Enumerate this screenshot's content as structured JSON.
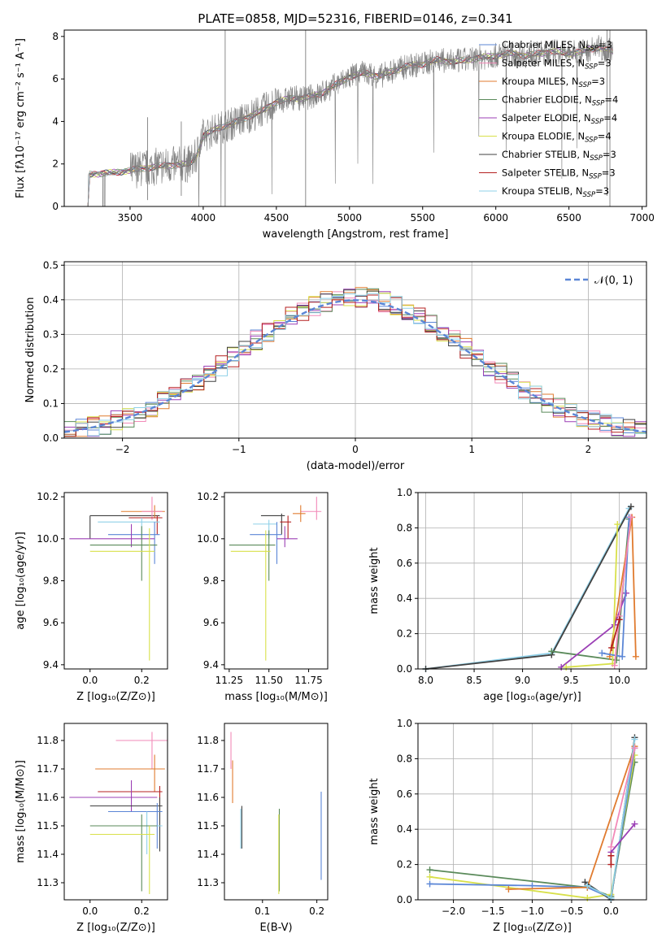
{
  "chart_data": [
    {
      "id": "spectrum",
      "type": "line",
      "title": "PLATE=0858, MJD=52316, FIBERID=0146, z=0.341",
      "xlabel": "wavelength [Angstrom, rest frame]",
      "ylabel": "Flux [fλ10⁻¹⁷ erg cm⁻² s⁻¹ A⁻¹]",
      "xlim": [
        3050,
        7030
      ],
      "ylim": [
        0,
        8.3
      ],
      "xticks": [
        3500,
        4000,
        4500,
        5000,
        5500,
        6000,
        6500,
        7000
      ],
      "yticks": [
        0,
        2,
        4,
        6,
        8
      ],
      "grid": false,
      "legend_position": "top-right",
      "series": [
        {
          "name": "Chabrier MILES, N",
          "sub": "SSP",
          "suffix": "=3",
          "color": "#5b86d6"
        },
        {
          "name": "Salpeter MILES, N",
          "sub": "SSP",
          "suffix": "=3",
          "color": "#f28ab8"
        },
        {
          "name": "Kroupa MILES, N",
          "sub": "SSP",
          "suffix": "=3",
          "color": "#e07b2f"
        },
        {
          "name": "Chabrier ELODIE, N",
          "sub": "SSP",
          "suffix": "=4",
          "color": "#5a8a5a"
        },
        {
          "name": "Salpeter ELODIE, N",
          "sub": "SSP",
          "suffix": "=4",
          "color": "#9b3fb5"
        },
        {
          "name": "Kroupa ELODIE, N",
          "sub": "SSP",
          "suffix": "=4",
          "color": "#d8e04a"
        },
        {
          "name": "Chabrier STELIB, N",
          "sub": "SSP",
          "suffix": "=3",
          "color": "#404040"
        },
        {
          "name": "Salpeter STELIB, N",
          "sub": "SSP",
          "suffix": "=3",
          "color": "#b52020"
        },
        {
          "name": "Kroupa STELIB, N",
          "sub": "SSP",
          "suffix": "=3",
          "color": "#8fd0e8"
        }
      ],
      "data_color": "#7f7f7f",
      "continuum": {
        "x": [
          3200,
          3300,
          3400,
          3500,
          3600,
          3700,
          3800,
          3900,
          3950,
          4000,
          4100,
          4200,
          4300,
          4400,
          4500,
          4600,
          4700,
          4800,
          4900,
          5000,
          5100,
          5200,
          5300,
          5400,
          5500,
          5600,
          5700,
          5800,
          5900,
          6000,
          6100,
          6200,
          6300,
          6400,
          6500,
          6600,
          6700,
          6800
        ],
        "y": [
          1.5,
          1.55,
          1.6,
          1.7,
          1.8,
          1.9,
          1.95,
          2.0,
          2.3,
          3.3,
          3.7,
          3.9,
          4.2,
          4.5,
          4.9,
          5.1,
          5.1,
          5.3,
          5.7,
          6.1,
          6.3,
          6.1,
          6.4,
          6.6,
          6.7,
          6.9,
          6.8,
          6.9,
          7.0,
          7.1,
          7.2,
          7.1,
          7.2,
          7.3,
          7.2,
          7.3,
          7.5,
          7.3
        ]
      }
    },
    {
      "id": "residuals",
      "type": "line",
      "xlabel": "(data-model)/error",
      "ylabel": "Normed distribution",
      "xlim": [
        -2.5,
        2.5
      ],
      "ylim": [
        0,
        0.51
      ],
      "xticks": [
        -2,
        -1,
        0,
        1,
        2
      ],
      "yticks": [
        0.0,
        0.1,
        0.2,
        0.3,
        0.4,
        0.5
      ],
      "grid": true,
      "legend_position": "top-right",
      "legend_label": "𝒩(0, 1)",
      "normal_color": "#5b86d6"
    },
    {
      "id": "age_vs_Z",
      "type": "scatter",
      "xlabel": "Z [log₁₀(Z/Z⊙)]",
      "ylabel": "age  [log₁₀(age/yr)]",
      "xlim": [
        -0.1,
        0.3
      ],
      "ylim": [
        9.38,
        10.22
      ],
      "xticks": [
        0.0,
        0.2
      ],
      "yticks": [
        9.4,
        9.6,
        9.8,
        10.0,
        10.2
      ],
      "points": [
        {
          "c": 6,
          "x": 0.0,
          "y": 10.11,
          "xl": 0.0,
          "xh": 0.27,
          "yl": 10.0,
          "yh": 10.11
        },
        {
          "c": 2,
          "x": 0.25,
          "y": 10.13,
          "xl": 0.12,
          "xh": 0.29,
          "yl": 10.1,
          "yh": 10.16
        },
        {
          "c": 1,
          "x": 0.24,
          "y": 10.13,
          "xl": 0.2,
          "xh": 0.28,
          "yl": 10.09,
          "yh": 10.2
        },
        {
          "c": 7,
          "x": 0.26,
          "y": 10.1,
          "xl": 0.15,
          "xh": 0.28,
          "yl": 10.02,
          "yh": 10.11
        },
        {
          "c": 8,
          "x": 0.2,
          "y": 10.08,
          "xl": 0.03,
          "xh": 0.27,
          "yl": 10.0,
          "yh": 10.1
        },
        {
          "c": 0,
          "x": 0.25,
          "y": 10.02,
          "xl": 0.07,
          "xh": 0.27,
          "yl": 9.88,
          "yh": 10.08
        },
        {
          "c": 4,
          "x": 0.16,
          "y": 10.0,
          "xl": -0.08,
          "xh": 0.25,
          "yl": 9.96,
          "yh": 10.07
        },
        {
          "c": 3,
          "x": 0.2,
          "y": 9.97,
          "xl": 0.0,
          "xh": 0.26,
          "yl": 9.8,
          "yh": 10.06
        },
        {
          "c": 5,
          "x": 0.23,
          "y": 9.94,
          "xl": 0.0,
          "xh": 0.25,
          "yl": 9.42,
          "yh": 10.05
        }
      ]
    },
    {
      "id": "age_vs_mass",
      "type": "scatter",
      "xlabel": "mass [log₁₀(M/M⊙)]",
      "ylabel": "",
      "xlim": [
        11.22,
        11.87
      ],
      "ylim": [
        9.38,
        10.22
      ],
      "xticks": [
        11.25,
        11.5,
        11.75
      ],
      "yticks": [
        9.4,
        9.6,
        9.8,
        10.0,
        10.2
      ],
      "points": [
        {
          "c": 1,
          "x": 11.8,
          "y": 10.13,
          "xl": 11.7,
          "xh": 11.83,
          "yl": 10.09,
          "yh": 10.2
        },
        {
          "c": 2,
          "x": 11.7,
          "y": 10.12,
          "xl": 11.65,
          "xh": 11.73,
          "yl": 10.08,
          "yh": 10.16
        },
        {
          "c": 6,
          "x": 11.58,
          "y": 10.11,
          "xl": 11.45,
          "xh": 11.6,
          "yl": 10.02,
          "yh": 10.12
        },
        {
          "c": 7,
          "x": 11.62,
          "y": 10.08,
          "xl": 11.57,
          "xh": 11.64,
          "yl": 10.0,
          "yh": 10.11
        },
        {
          "c": 8,
          "x": 11.5,
          "y": 10.07,
          "xl": 11.4,
          "xh": 11.55,
          "yl": 10.0,
          "yh": 10.09
        },
        {
          "c": 0,
          "x": 11.55,
          "y": 10.02,
          "xl": 11.38,
          "xh": 11.58,
          "yl": 9.88,
          "yh": 10.08
        },
        {
          "c": 4,
          "x": 11.6,
          "y": 10.0,
          "xl": 11.55,
          "xh": 11.68,
          "yl": 9.96,
          "yh": 10.06
        },
        {
          "c": 3,
          "x": 11.5,
          "y": 9.97,
          "xl": 11.25,
          "xh": 11.54,
          "yl": 9.8,
          "yh": 10.04
        },
        {
          "c": 5,
          "x": 11.48,
          "y": 9.94,
          "xl": 11.26,
          "xh": 11.51,
          "yl": 9.42,
          "yh": 10.04
        }
      ]
    },
    {
      "id": "mass_weight_vs_age",
      "type": "line",
      "xlabel": "age  [log₁₀(age/yr)]",
      "ylabel": "mass weight",
      "xlim": [
        7.92,
        10.28
      ],
      "ylim": [
        0,
        1.0
      ],
      "xticks": [
        8.0,
        8.5,
        9.0,
        9.5,
        10.0
      ],
      "yticks": [
        0.0,
        0.2,
        0.4,
        0.6,
        0.8,
        1.0
      ],
      "grid": true,
      "series": [
        {
          "c": 8,
          "x": [
            8.0,
            9.3,
            10.1
          ],
          "y": [
            0.0,
            0.09,
            0.91
          ]
        },
        {
          "c": 6,
          "x": [
            8.0,
            9.3,
            10.12
          ],
          "y": [
            0.0,
            0.08,
            0.92
          ]
        },
        {
          "c": 3,
          "x": [
            9.3,
            9.97,
            10.1
          ],
          "y": [
            0.1,
            0.05,
            0.85
          ]
        },
        {
          "c": 2,
          "x": [
            9.9,
            10.13,
            10.17
          ],
          "y": [
            0.07,
            0.86,
            0.07
          ]
        },
        {
          "c": 4,
          "x": [
            9.4,
            9.95,
            10.07
          ],
          "y": [
            0.01,
            0.25,
            0.43
          ]
        },
        {
          "c": 5,
          "x": [
            9.45,
            9.93,
            9.98
          ],
          "y": [
            0.01,
            0.03,
            0.82
          ]
        },
        {
          "c": 0,
          "x": [
            9.82,
            10.03,
            10.1
          ],
          "y": [
            0.09,
            0.07,
            0.86
          ]
        },
        {
          "c": 1,
          "x": [
            9.95,
            10.0,
            10.12
          ],
          "y": [
            0.02,
            0.3,
            0.86
          ]
        },
        {
          "c": 7,
          "x": [
            9.92,
            10.0
          ],
          "y": [
            0.12,
            0.28
          ]
        }
      ]
    },
    {
      "id": "mass_vs_Z",
      "type": "scatter",
      "xlabel": "Z [log₁₀(Z/Z⊙)]",
      "ylabel": "mass [log₁₀(M/M⊙)]",
      "xlim": [
        -0.1,
        0.3
      ],
      "ylim": [
        11.24,
        11.86
      ],
      "xticks": [
        0.0,
        0.2
      ],
      "yticks": [
        11.3,
        11.4,
        11.5,
        11.6,
        11.7,
        11.8
      ],
      "points": [
        {
          "c": 1,
          "x": 0.24,
          "y": 11.8,
          "xl": 0.1,
          "xh": 0.3,
          "yl": 11.7,
          "yh": 11.83
        },
        {
          "c": 2,
          "x": 0.25,
          "y": 11.7,
          "xl": 0.02,
          "xh": 0.29,
          "yl": 11.62,
          "yh": 11.75
        },
        {
          "c": 7,
          "x": 0.27,
          "y": 11.62,
          "xl": 0.03,
          "xh": 0.28,
          "yl": 11.57,
          "yh": 11.64
        },
        {
          "c": 4,
          "x": 0.16,
          "y": 11.6,
          "xl": -0.08,
          "xh": 0.26,
          "yl": 11.55,
          "yh": 11.66
        },
        {
          "c": 6,
          "x": 0.27,
          "y": 11.57,
          "xl": 0.0,
          "xh": 0.28,
          "yl": 11.41,
          "yh": 11.6
        },
        {
          "c": 0,
          "x": 0.26,
          "y": 11.55,
          "xl": 0.07,
          "xh": 0.28,
          "yl": 11.42,
          "yh": 11.58
        },
        {
          "c": 8,
          "x": 0.22,
          "y": 11.5,
          "xl": 0.03,
          "xh": 0.28,
          "yl": 11.4,
          "yh": 11.55
        },
        {
          "c": 3,
          "x": 0.2,
          "y": 11.5,
          "xl": 0.0,
          "xh": 0.26,
          "yl": 11.27,
          "yh": 11.54
        },
        {
          "c": 5,
          "x": 0.23,
          "y": 11.47,
          "xl": 0.0,
          "xh": 0.25,
          "yl": 11.26,
          "yh": 11.5
        }
      ]
    },
    {
      "id": "mass_vs_ebv",
      "type": "scatter",
      "xlabel": "E(B-V)",
      "ylabel": "",
      "xlim": [
        0.03,
        0.22
      ],
      "ylim": [
        11.24,
        11.86
      ],
      "xticks": [
        0.1,
        0.2
      ],
      "yticks": [
        11.3,
        11.4,
        11.5,
        11.6,
        11.7,
        11.8
      ],
      "points": [
        {
          "c": 1,
          "x": 0.042,
          "yl": 11.7,
          "yh": 11.83
        },
        {
          "c": 2,
          "x": 0.045,
          "yl": 11.58,
          "yh": 11.73
        },
        {
          "c": 6,
          "x": 0.062,
          "yl": 11.42,
          "yh": 11.57
        },
        {
          "c": 8,
          "x": 0.06,
          "yl": 11.42,
          "yh": 11.56
        },
        {
          "c": 3,
          "x": 0.131,
          "yl": 11.27,
          "yh": 11.56
        },
        {
          "c": 5,
          "x": 0.13,
          "yl": 11.26,
          "yh": 11.54
        },
        {
          "c": 0,
          "x": 0.208,
          "yl": 11.31,
          "yh": 11.62
        }
      ]
    },
    {
      "id": "mass_weight_vs_Z",
      "type": "line",
      "xlabel": "Z [log₁₀(Z/Z⊙)]",
      "ylabel": "mass weight",
      "xlim": [
        -2.45,
        0.45
      ],
      "ylim": [
        0,
        1.0
      ],
      "xticks": [
        -2.0,
        -1.5,
        -1.0,
        -0.5,
        0.0
      ],
      "yticks": [
        0.0,
        0.2,
        0.4,
        0.6,
        0.8,
        1.0
      ],
      "grid": true,
      "series": [
        {
          "c": 3,
          "x": [
            -2.3,
            -0.3,
            0.0,
            0.3
          ],
          "y": [
            0.17,
            0.07,
            0.02,
            0.78
          ]
        },
        {
          "c": 5,
          "x": [
            -2.3,
            -0.3,
            0.0,
            0.3
          ],
          "y": [
            0.13,
            0.01,
            0.03,
            0.82
          ]
        },
        {
          "c": 0,
          "x": [
            -2.3,
            -1.0,
            -0.3,
            0.0,
            0.3
          ],
          "y": [
            0.09,
            0.08,
            0.07,
            0.01,
            0.86
          ]
        },
        {
          "c": 2,
          "x": [
            -1.3,
            -0.3,
            0.3
          ],
          "y": [
            0.06,
            0.07,
            0.87
          ]
        },
        {
          "c": 6,
          "x": [
            -0.33,
            0.0,
            0.3
          ],
          "y": [
            0.1,
            0.0,
            0.92
          ]
        },
        {
          "c": 8,
          "x": [
            -0.3,
            0.0,
            0.3
          ],
          "y": [
            0.08,
            0.01,
            0.91
          ]
        },
        {
          "c": 4,
          "x": [
            0.0,
            0.3
          ],
          "y": [
            0.27,
            0.43
          ]
        },
        {
          "c": 1,
          "x": [
            0.0,
            0.3
          ],
          "y": [
            0.3,
            0.86
          ]
        },
        {
          "c": 7,
          "x": [
            0.0,
            0.0
          ],
          "y": [
            0.2,
            0.25
          ]
        }
      ]
    }
  ]
}
